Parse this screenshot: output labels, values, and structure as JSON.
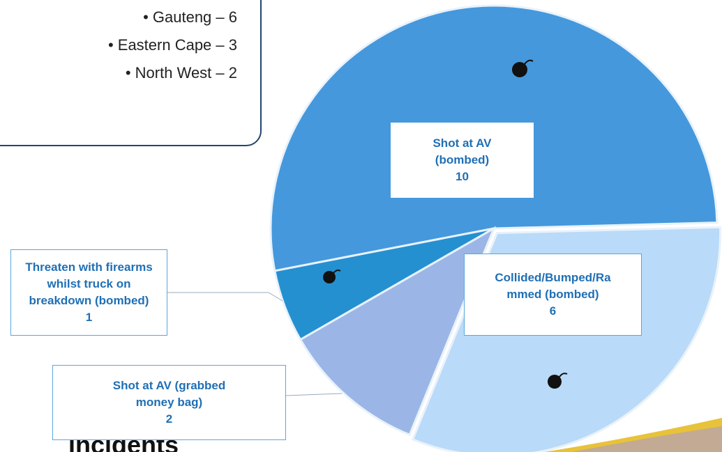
{
  "panel": {
    "items": [
      "• Gauteng – 6",
      "• Eastern Cape – 3",
      "• North West – 2"
    ]
  },
  "footer": "incidents",
  "chart_data": {
    "type": "pie",
    "categories": [
      "Shot at AV\n(bombed)",
      "Threaten with firearms\nwhilst truck on\nbreakdown (bombed)",
      "Shot at AV (grabbed\nmoney bag)",
      "Collided/Bumped/Ra\nmmed (bombed)"
    ],
    "values": [
      10,
      1,
      2,
      6
    ],
    "colors": [
      "#4598dc",
      "#2590d0",
      "#9bb6e6",
      "#b9daf8"
    ]
  }
}
